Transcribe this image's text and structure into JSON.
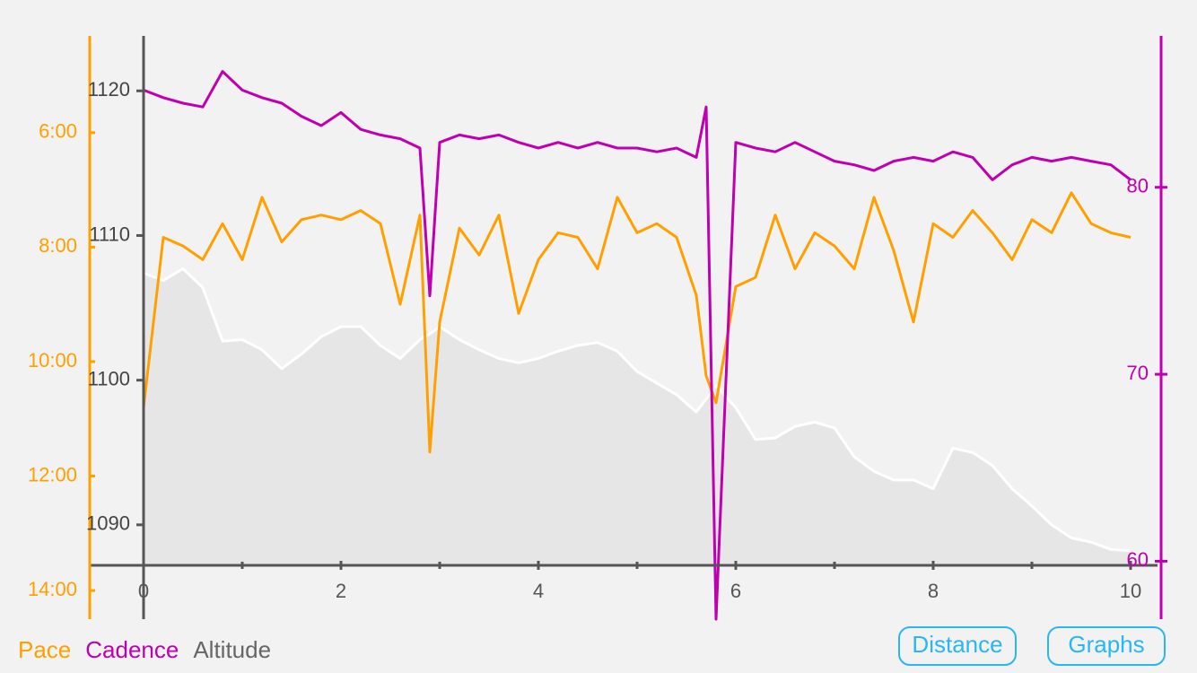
{
  "chart_data": {
    "type": "line",
    "x": [
      0,
      0.2,
      0.4,
      0.6,
      0.8,
      1,
      1.2,
      1.4,
      1.6,
      1.8,
      2,
      2.2,
      2.4,
      2.6,
      2.8,
      2.9,
      3,
      3.2,
      3.4,
      3.6,
      3.8,
      4,
      4.2,
      4.4,
      4.6,
      4.8,
      5,
      5.2,
      5.4,
      5.6,
      5.7,
      5.8,
      6,
      6.2,
      6.4,
      6.6,
      6.8,
      7,
      7.2,
      7.4,
      7.6,
      7.8,
      8,
      8.2,
      8.4,
      8.6,
      8.8,
      9,
      9.2,
      9.4,
      9.6,
      9.8,
      10
    ],
    "xlim": [
      0,
      10
    ],
    "xticks": [
      0,
      2,
      4,
      6,
      8,
      10
    ],
    "xminor_ticks": [
      1,
      3,
      5,
      7,
      9
    ],
    "ylim": [
      4.31,
      14.5
    ],
    "y_inverted": true,
    "yticks": [
      {
        "value": 6,
        "label": "6:00"
      },
      {
        "value": 8,
        "label": "8:00"
      },
      {
        "value": 10,
        "label": "10:00"
      },
      {
        "value": 12,
        "label": "12:00"
      },
      {
        "value": 14,
        "label": "14:00"
      }
    ],
    "y2lim": [
      56.9,
      88.1
    ],
    "y2ticks": [
      60,
      70,
      80
    ],
    "y3lim": [
      1087.2,
      1123.8
    ],
    "y3ticks": [
      1090,
      1100,
      1110,
      1120
    ],
    "series": [
      {
        "name": "Altitude",
        "color": "#ffffff",
        "area_color": "#e6e6e6",
        "axis": "y3",
        "values": [
          1107.4,
          1106.9,
          1107.7,
          1106.4,
          1102.7,
          1102.8,
          1102.1,
          1100.8,
          1101.8,
          1103.0,
          1103.7,
          1103.7,
          1102.4,
          1101.5,
          1102.8,
          1103.2,
          1103.7,
          1102.8,
          1102.1,
          1101.5,
          1101.2,
          1101.5,
          1102.0,
          1102.4,
          1102.6,
          1102.0,
          1100.6,
          1099.8,
          1099.0,
          1097.8,
          1098.7,
          1099.6,
          1098.1,
          1095.9,
          1096.0,
          1096.8,
          1097.1,
          1096.7,
          1094.7,
          1093.7,
          1093.1,
          1093.1,
          1092.5,
          1095.3,
          1095.0,
          1094.1,
          1092.5,
          1091.3,
          1090.0,
          1089.1,
          1088.8,
          1088.3,
          1088.2
        ]
      },
      {
        "name": "Pace",
        "color": "#ffa000",
        "values": [
          10.8,
          7.83,
          7.98,
          8.22,
          7.59,
          8.22,
          7.13,
          7.91,
          7.52,
          7.44,
          7.52,
          7.36,
          7.59,
          9.0,
          7.44,
          11.58,
          9.31,
          7.67,
          8.14,
          7.44,
          9.16,
          8.22,
          7.75,
          7.83,
          8.38,
          7.13,
          7.75,
          7.59,
          7.83,
          8.84,
          10.25,
          10.72,
          8.69,
          8.53,
          7.44,
          8.38,
          7.75,
          7.98,
          8.38,
          7.13,
          8.06,
          9.31,
          7.59,
          7.83,
          7.36,
          7.75,
          8.22,
          7.52,
          7.75,
          7.05,
          7.59,
          7.75,
          7.83
        ]
      },
      {
        "name": "Cadence",
        "color": "#c000b0",
        "axis": "y2",
        "values": [
          85.2,
          84.8,
          84.5,
          84.3,
          86.2,
          85.2,
          84.8,
          84.5,
          83.8,
          83.3,
          84.0,
          83.1,
          82.8,
          82.6,
          82.1,
          74.2,
          82.4,
          82.8,
          82.6,
          82.8,
          82.4,
          82.1,
          82.4,
          82.1,
          82.4,
          82.1,
          82.1,
          81.9,
          82.1,
          81.6,
          84.3,
          56.9,
          82.4,
          82.1,
          81.9,
          82.4,
          81.9,
          81.4,
          81.2,
          80.9,
          81.4,
          81.6,
          81.4,
          81.9,
          81.6,
          80.4,
          81.2,
          81.6,
          81.4,
          81.6,
          81.4,
          81.2,
          80.4
        ]
      }
    ],
    "legend_order": [
      1,
      2,
      0
    ]
  },
  "buttons": [
    "Distance",
    "Graphs"
  ]
}
